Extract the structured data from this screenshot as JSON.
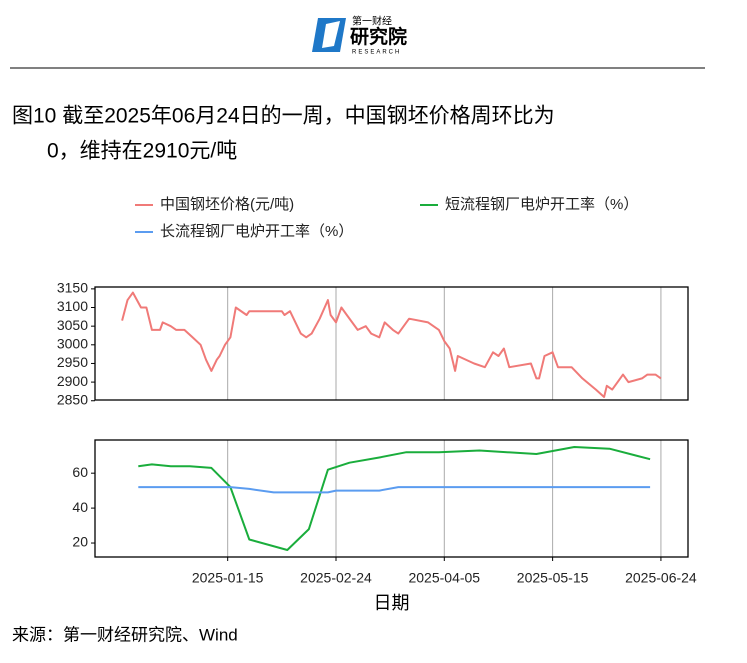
{
  "header": {
    "brand_small": "第一财经",
    "brand": "研究院",
    "brand_en": "RESEARCH"
  },
  "title": [
    "图10  截至2025年06月24日的一周，中国钢坯价格周环比为",
    "0，维持在2910元/吨"
  ],
  "source": "来源：第一财经研究院、Wind",
  "chart_data": [
    {
      "type": "line",
      "xlim": [
        "2024-11-27",
        "2025-07-04"
      ],
      "ylim": [
        2852,
        3155
      ],
      "yticks": [
        2850,
        2900,
        2950,
        3000,
        3050,
        3100,
        3150
      ],
      "grid": true,
      "series": [
        {
          "name": "中国钢坯价格(元/吨)",
          "color": "#f07a78",
          "x": [
            "2024-12-07",
            "2024-12-09",
            "2024-12-11",
            "2024-12-14",
            "2024-12-16",
            "2024-12-18",
            "2024-12-21",
            "2024-12-22",
            "2024-12-25",
            "2024-12-27",
            "2024-12-30",
            "2025-01-02",
            "2025-01-05",
            "2025-01-07",
            "2025-01-09",
            "2025-01-11",
            "2025-01-12",
            "2025-01-14",
            "2025-01-16",
            "2025-01-18",
            "2025-01-22",
            "2025-01-23",
            "2025-02-04",
            "2025-02-05",
            "2025-02-07",
            "2025-02-11",
            "2025-02-13",
            "2025-02-15",
            "2025-02-18",
            "2025-02-21",
            "2025-02-22",
            "2025-02-24",
            "2025-02-26",
            "2025-02-28",
            "2025-03-02",
            "2025-03-04",
            "2025-03-07",
            "2025-03-09",
            "2025-03-12",
            "2025-03-14",
            "2025-03-17",
            "2025-03-19",
            "2025-03-23",
            "2025-03-30",
            "2025-04-03",
            "2025-04-05",
            "2025-04-07",
            "2025-04-09",
            "2025-04-10",
            "2025-04-16",
            "2025-04-20",
            "2025-04-23",
            "2025-04-25",
            "2025-04-27",
            "2025-04-29",
            "2025-05-07",
            "2025-05-09",
            "2025-05-10",
            "2025-05-12",
            "2025-05-15",
            "2025-05-17",
            "2025-05-22",
            "2025-05-26",
            "2025-05-31",
            "2025-06-03",
            "2025-06-04",
            "2025-06-06",
            "2025-06-10",
            "2025-06-12",
            "2025-06-17",
            "2025-06-19",
            "2025-06-22",
            "2025-06-24"
          ],
          "values": [
            3065,
            3120,
            3140,
            3100,
            3100,
            3040,
            3040,
            3060,
            3050,
            3040,
            3040,
            3020,
            3000,
            2960,
            2930,
            2960,
            2970,
            3000,
            3020,
            3100,
            3080,
            3090,
            3090,
            3080,
            3090,
            3030,
            3020,
            3030,
            3070,
            3120,
            3080,
            3060,
            3100,
            3080,
            3060,
            3040,
            3050,
            3030,
            3020,
            3060,
            3040,
            3030,
            3070,
            3060,
            3040,
            3010,
            2990,
            2930,
            2970,
            2950,
            2940,
            2980,
            2970,
            2990,
            2940,
            2950,
            2910,
            2910,
            2970,
            2980,
            2940,
            2940,
            2910,
            2880,
            2860,
            2890,
            2880,
            2920,
            2900,
            2910,
            2920,
            2920,
            2910
          ]
        }
      ]
    },
    {
      "type": "line",
      "xlim": [
        "2024-11-27",
        "2025-07-04"
      ],
      "ylim": [
        12,
        79
      ],
      "yticks": [
        20,
        40,
        60
      ],
      "xticks": [
        "2025-01-15",
        "2025-02-24",
        "2025-04-05",
        "2025-05-15",
        "2025-06-24"
      ],
      "xlabel": "日期",
      "grid": true,
      "series": [
        {
          "name": "短流程钢厂电炉开工率（%）",
          "color": "#1aad3c",
          "x": [
            "2024-12-13",
            "2024-12-18",
            "2024-12-25",
            "2025-01-01",
            "2025-01-09",
            "2025-01-16",
            "2025-01-23",
            "2025-02-06",
            "2025-02-14",
            "2025-02-21",
            "2025-03-01",
            "2025-03-12",
            "2025-03-22",
            "2025-04-03",
            "2025-04-18",
            "2025-05-09",
            "2025-05-23",
            "2025-06-05",
            "2025-06-20"
          ],
          "values": [
            64,
            65,
            64,
            64,
            63,
            52,
            22,
            16,
            28,
            62,
            66,
            69,
            72,
            72,
            73,
            71,
            75,
            74,
            68
          ]
        },
        {
          "name": "长流程钢厂电炉开工率（%）",
          "color": "#5b9cf0",
          "x": [
            "2024-12-13",
            "2025-01-16",
            "2025-01-23",
            "2025-02-01",
            "2025-02-21",
            "2025-02-24",
            "2025-03-12",
            "2025-03-19",
            "2025-06-20"
          ],
          "values": [
            52,
            52,
            51,
            49,
            49,
            50,
            50,
            52,
            52
          ]
        }
      ]
    }
  ]
}
